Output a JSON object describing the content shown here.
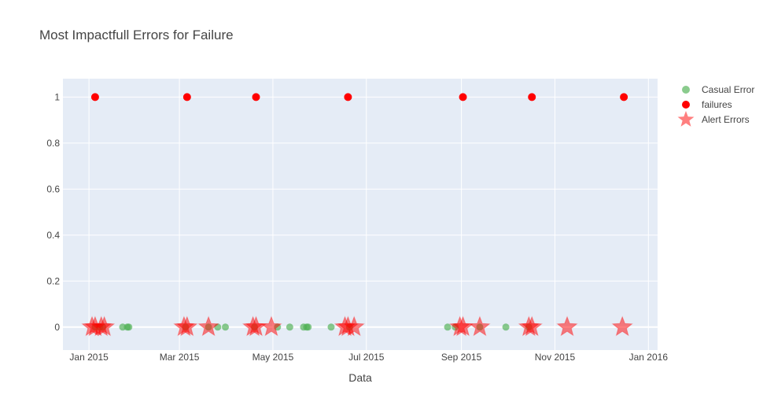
{
  "chart_data": {
    "type": "scatter",
    "title": "Most Impactfull Errors for Failure",
    "xlabel": "Data",
    "ylabel": "",
    "x_range": [
      "2014-12-15",
      "2016-01-07"
    ],
    "y_range": [
      -0.1,
      1.08
    ],
    "x_ticks": [
      {
        "date": "2015-01-01",
        "label": "Jan 2015"
      },
      {
        "date": "2015-03-01",
        "label": "Mar 2015"
      },
      {
        "date": "2015-05-01",
        "label": "May 2015"
      },
      {
        "date": "2015-07-01",
        "label": "Jul 2015"
      },
      {
        "date": "2015-09-01",
        "label": "Sep 2015"
      },
      {
        "date": "2015-11-01",
        "label": "Nov 2015"
      },
      {
        "date": "2016-01-01",
        "label": "Jan 2016"
      }
    ],
    "y_ticks": [
      {
        "value": 0,
        "label": "0"
      },
      {
        "value": 0.2,
        "label": "0.2"
      },
      {
        "value": 0.4,
        "label": "0.4"
      },
      {
        "value": 0.6,
        "label": "0.6"
      },
      {
        "value": 0.8,
        "label": "0.8"
      },
      {
        "value": 1,
        "label": "1"
      }
    ],
    "grid": true,
    "legend_position": "top-right, outside plot",
    "background_color": "#e5ecf6",
    "series": [
      {
        "name": "Casual Error",
        "marker": "circle",
        "color": "#4caf50",
        "opacity": 0.65,
        "points": [
          {
            "x": "2015-01-05",
            "y": 0
          },
          {
            "x": "2015-01-08",
            "y": 0
          },
          {
            "x": "2015-01-10",
            "y": 0
          },
          {
            "x": "2015-01-23",
            "y": 0
          },
          {
            "x": "2015-01-26",
            "y": 0
          },
          {
            "x": "2015-01-27",
            "y": 0
          },
          {
            "x": "2015-03-05",
            "y": 0
          },
          {
            "x": "2015-03-20",
            "y": 0
          },
          {
            "x": "2015-03-26",
            "y": 0
          },
          {
            "x": "2015-03-31",
            "y": 0
          },
          {
            "x": "2015-04-19",
            "y": 0
          },
          {
            "x": "2015-05-04",
            "y": 0
          },
          {
            "x": "2015-05-12",
            "y": 0
          },
          {
            "x": "2015-05-21",
            "y": 0
          },
          {
            "x": "2015-05-23",
            "y": 0
          },
          {
            "x": "2015-05-24",
            "y": 0
          },
          {
            "x": "2015-06-08",
            "y": 0
          },
          {
            "x": "2015-06-20",
            "y": 0
          },
          {
            "x": "2015-08-23",
            "y": 0
          },
          {
            "x": "2015-08-28",
            "y": 0
          },
          {
            "x": "2015-09-13",
            "y": 0
          },
          {
            "x": "2015-09-30",
            "y": 0
          },
          {
            "x": "2015-10-15",
            "y": 0
          }
        ]
      },
      {
        "name": "failures",
        "marker": "circle",
        "color": "#ff0000",
        "opacity": 1,
        "points": [
          {
            "x": "2015-01-05",
            "y": 1
          },
          {
            "x": "2015-03-06",
            "y": 1
          },
          {
            "x": "2015-04-20",
            "y": 1
          },
          {
            "x": "2015-06-19",
            "y": 1
          },
          {
            "x": "2015-09-02",
            "y": 1
          },
          {
            "x": "2015-10-17",
            "y": 1
          },
          {
            "x": "2015-12-16",
            "y": 1
          }
        ]
      },
      {
        "name": "Alert Errors",
        "marker": "star",
        "color": "#ff0000",
        "opacity": 0.5,
        "points": [
          {
            "x": "2015-01-03",
            "y": 0
          },
          {
            "x": "2015-01-05",
            "y": 0
          },
          {
            "x": "2015-01-09",
            "y": 0
          },
          {
            "x": "2015-01-11",
            "y": 0
          },
          {
            "x": "2015-03-04",
            "y": 0
          },
          {
            "x": "2015-03-06",
            "y": 0
          },
          {
            "x": "2015-03-20",
            "y": 0
          },
          {
            "x": "2015-04-18",
            "y": 0
          },
          {
            "x": "2015-04-20",
            "y": 0
          },
          {
            "x": "2015-04-30",
            "y": 0
          },
          {
            "x": "2015-06-17",
            "y": 0
          },
          {
            "x": "2015-06-19",
            "y": 0
          },
          {
            "x": "2015-06-23",
            "y": 0
          },
          {
            "x": "2015-08-31",
            "y": 0
          },
          {
            "x": "2015-09-02",
            "y": 0
          },
          {
            "x": "2015-09-13",
            "y": 0
          },
          {
            "x": "2015-10-15",
            "y": 0
          },
          {
            "x": "2015-10-17",
            "y": 0
          },
          {
            "x": "2015-11-09",
            "y": 0
          },
          {
            "x": "2015-12-15",
            "y": 0
          }
        ]
      }
    ]
  }
}
